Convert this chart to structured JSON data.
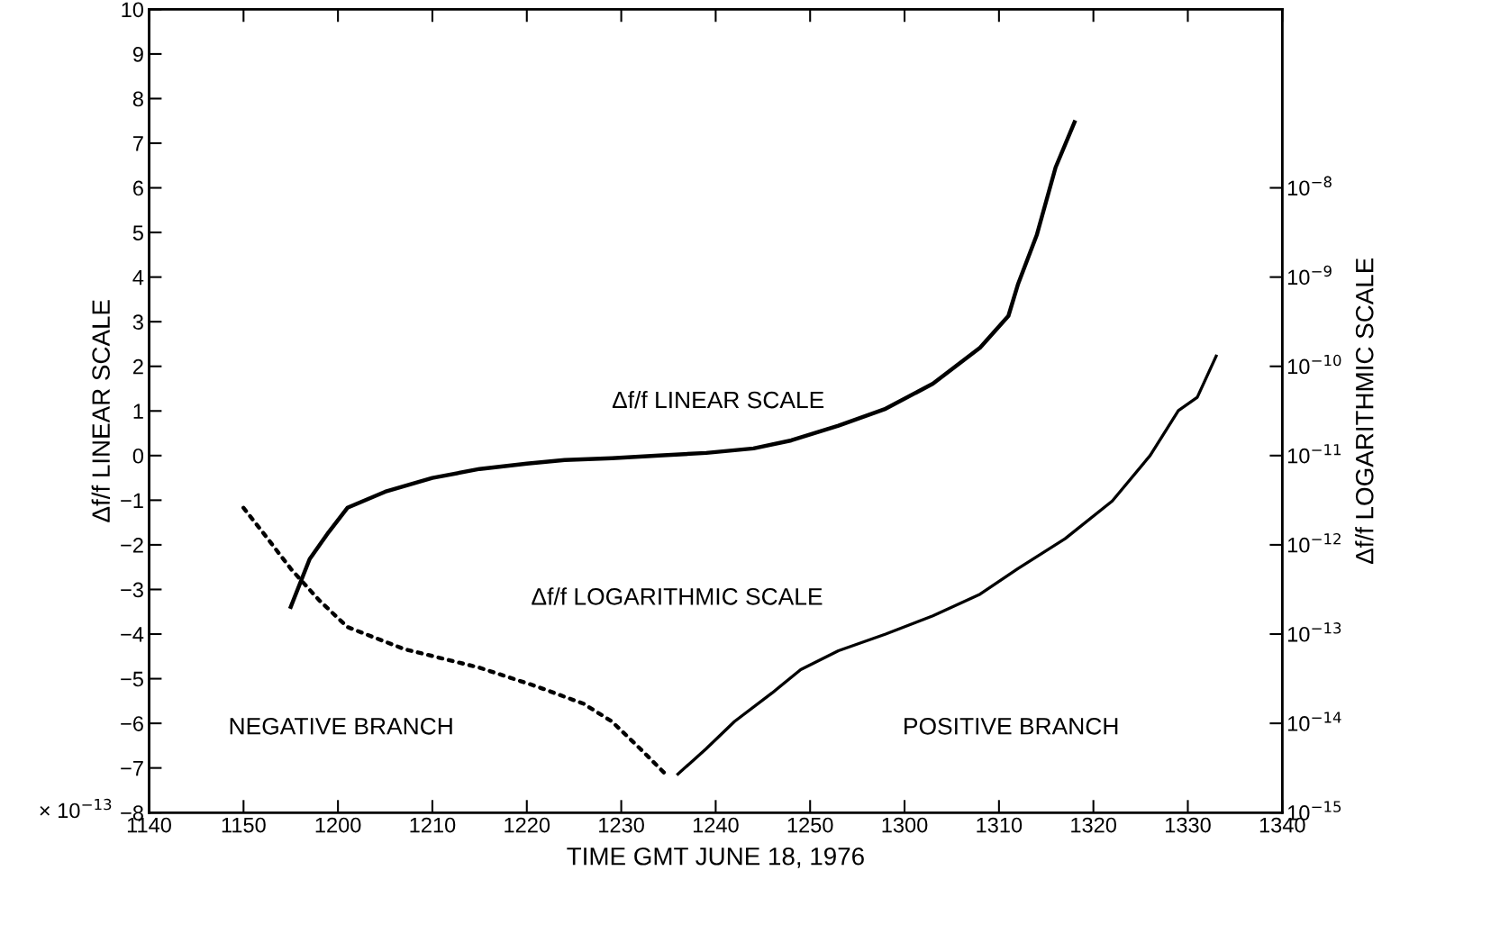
{
  "chart_data": {
    "type": "line",
    "xlabel": "TIME GMT JUNE 18, 1976",
    "ylabel": "Δf/f LINEAR SCALE",
    "y2label": "Δf/f LOGARITHMIC SCALE",
    "xlim": [
      "1976-06-18T11:40",
      "1976-06-18T13:40"
    ],
    "xticks": [
      {
        "value": "1976-06-18T11:40",
        "label": "1140"
      },
      {
        "value": "1976-06-18T11:50",
        "label": "1150"
      },
      {
        "value": "1976-06-18T12:00",
        "label": "1200"
      },
      {
        "value": "1976-06-18T12:10",
        "label": "1210"
      },
      {
        "value": "1976-06-18T12:20",
        "label": "1220"
      },
      {
        "value": "1976-06-18T12:30",
        "label": "1230"
      },
      {
        "value": "1976-06-18T12:40",
        "label": "1240"
      },
      {
        "value": "1976-06-18T12:50",
        "label": "1250"
      },
      {
        "value": "1976-06-18T13:00",
        "label": "1300"
      },
      {
        "value": "1976-06-18T13:10",
        "label": "1310"
      },
      {
        "value": "1976-06-18T13:20",
        "label": "1320"
      },
      {
        "value": "1976-06-18T13:30",
        "label": "1330"
      },
      {
        "value": "1976-06-18T13:40",
        "label": "1340"
      }
    ],
    "ylim": [
      -8,
      10
    ],
    "yticks": [
      -8,
      -7,
      -6,
      -5,
      -4,
      -3,
      -2,
      -1,
      0,
      1,
      2,
      3,
      4,
      5,
      6,
      7,
      8,
      9,
      10
    ],
    "y2lim": [
      1e-15,
      1e-06
    ],
    "log": "y2",
    "y2ticks": [
      {
        "value": 1e-15,
        "label": "10$^{−15}$"
      },
      {
        "value": 1e-14,
        "label": "10$^{−14}$"
      },
      {
        "value": 1e-13,
        "label": "10$^{−13}$"
      },
      {
        "value": 1e-12,
        "label": "10$^{−12}$"
      },
      {
        "value": 1e-11,
        "label": "10$^{−11}$"
      },
      {
        "value": 1e-10,
        "label": "10$^{−10}$"
      },
      {
        "value": 1e-09,
        "label": "10$^{−9}$"
      },
      {
        "value": 1e-08,
        "label": "10$^{−8}$"
      }
    ],
    "grid": false,
    "legend": false,
    "series": [
      {
        "name": "Δf/f LINEAR SCALE",
        "color": "#000000",
        "line_style": "solid",
        "x": [
          "1976-06-18T11:55",
          "1976-06-18T11:57",
          "1976-06-18T11:59",
          "1976-06-18T12:01",
          "1976-06-18T12:05",
          "1976-06-18T12:10",
          "1976-06-18T12:15",
          "1976-06-18T12:20",
          "1976-06-18T12:24",
          "1976-06-18T12:29",
          "1976-06-18T12:34",
          "1976-06-18T12:39",
          "1976-06-18T12:44",
          "1976-06-18T12:48",
          "1976-06-18T12:53",
          "1976-06-18T12:58",
          "1976-06-18T13:03",
          "1976-06-18T13:08",
          "1976-06-18T13:11",
          "1976-06-18T13:12",
          "1976-06-18T13:14",
          "1976-06-18T13:16",
          "1976-06-18T13:18"
        ],
        "values": [
          -3.39,
          -2.32,
          -1.72,
          -1.17,
          -0.81,
          -0.5,
          -0.3,
          -0.18,
          -0.1,
          -0.06,
          0.0,
          0.06,
          0.16,
          0.34,
          0.67,
          1.05,
          1.61,
          2.42,
          3.13,
          3.83,
          4.94,
          6.46,
          7.47
        ]
      },
      {
        "name": "Δf/f LOGARITHMIC SCALE",
        "color": "#000000",
        "axis": "y2",
        "line_style": "solid",
        "x": [
          "1976-06-18T12:36",
          "1976-06-18T12:39",
          "1976-06-18T12:42",
          "1976-06-18T12:46",
          "1976-06-18T12:49",
          "1976-06-18T12:53",
          "1976-06-18T12:58",
          "1976-06-18T13:03",
          "1976-06-18T13:08",
          "1976-06-18T13:12",
          "1976-06-18T13:17",
          "1976-06-18T13:22",
          "1976-06-18T13:26",
          "1976-06-18T13:29",
          "1976-06-18T13:31",
          "1976-06-18T13:33"
        ],
        "values": [
          2.7e-15,
          5.2e-15,
          1.05e-14,
          2.2e-14,
          4e-14,
          6.5e-14,
          1e-13,
          1.6e-13,
          2.8e-13,
          5.4e-13,
          1.17e-12,
          3.1e-12,
          1e-11,
          3.2e-11,
          4.5e-11,
          1.3e-10
        ]
      },
      {
        "color": "#000000",
        "axis": "y2",
        "line_style": "dotted",
        "x": [
          "1976-06-18T11:50",
          "1976-06-18T11:52",
          "1976-06-18T11:55",
          "1976-06-18T11:58",
          "1976-06-18T12:01",
          "1976-06-18T12:07",
          "1976-06-18T12:15",
          "1976-06-18T12:21",
          "1976-06-18T12:26",
          "1976-06-18T12:29",
          "1976-06-18T12:32",
          "1976-06-18T12:35"
        ],
        "values": [
          2.6e-12,
          1.4e-12,
          5.4e-13,
          2.4e-13,
          1.2e-13,
          6.8e-14,
          4.2e-14,
          2.6e-14,
          1.66e-14,
          1.05e-14,
          5.2e-15,
          2.5e-15
        ]
      }
    ],
    "annotations": [
      "NEGATIVE BRANCH",
      "POSITIVE BRANCH",
      "× 10$^{−13}$"
    ]
  }
}
